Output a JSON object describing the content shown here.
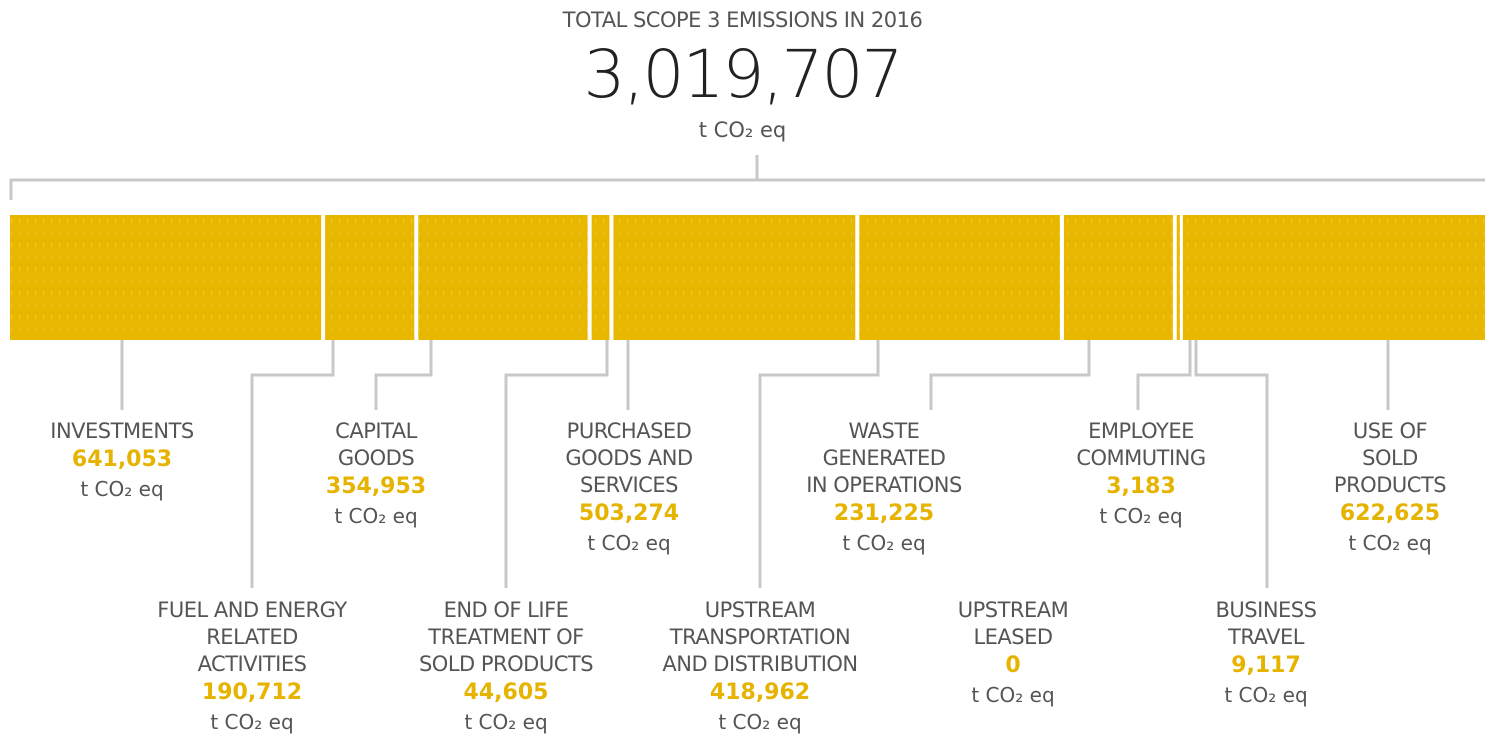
{
  "chart_data": {
    "type": "stacked-bar",
    "title": "TOTAL SCOPE 3 EMISSIONS IN 2016",
    "total": {
      "value": 3019707,
      "label": "3,019,707"
    },
    "unit": "t CO₂ eq",
    "color": "#e8b800",
    "categories": [
      "INVESTMENTS",
      "FUEL AND ENERGY\nRELATED\nACTIVITIES",
      "CAPITAL\nGOODS",
      "END OF LIFE\nTREATMENT OF\nSOLD PRODUCTS",
      "PURCHASED\nGOODS AND\nSERVICES",
      "UPSTREAM\nTRANSPORTATION\nAND DISTRIBUTION",
      "WASTE\nGENERATED\nIN OPERATIONS",
      "UPSTREAM\nLEASED",
      "EMPLOYEE\nCOMMUTING",
      "BUSINESS\nTRAVEL",
      "USE OF SOLD\nPRODUCTS"
    ],
    "values": [
      641053,
      190712,
      354953,
      44605,
      503274,
      418962,
      231225,
      0,
      3183,
      9117,
      622625
    ],
    "value_labels": [
      "641,053",
      "190,712",
      "354,953",
      "44,605",
      "503,274",
      "418,962",
      "231,225",
      "0",
      "3,183",
      "9,117",
      "622,625"
    ]
  }
}
